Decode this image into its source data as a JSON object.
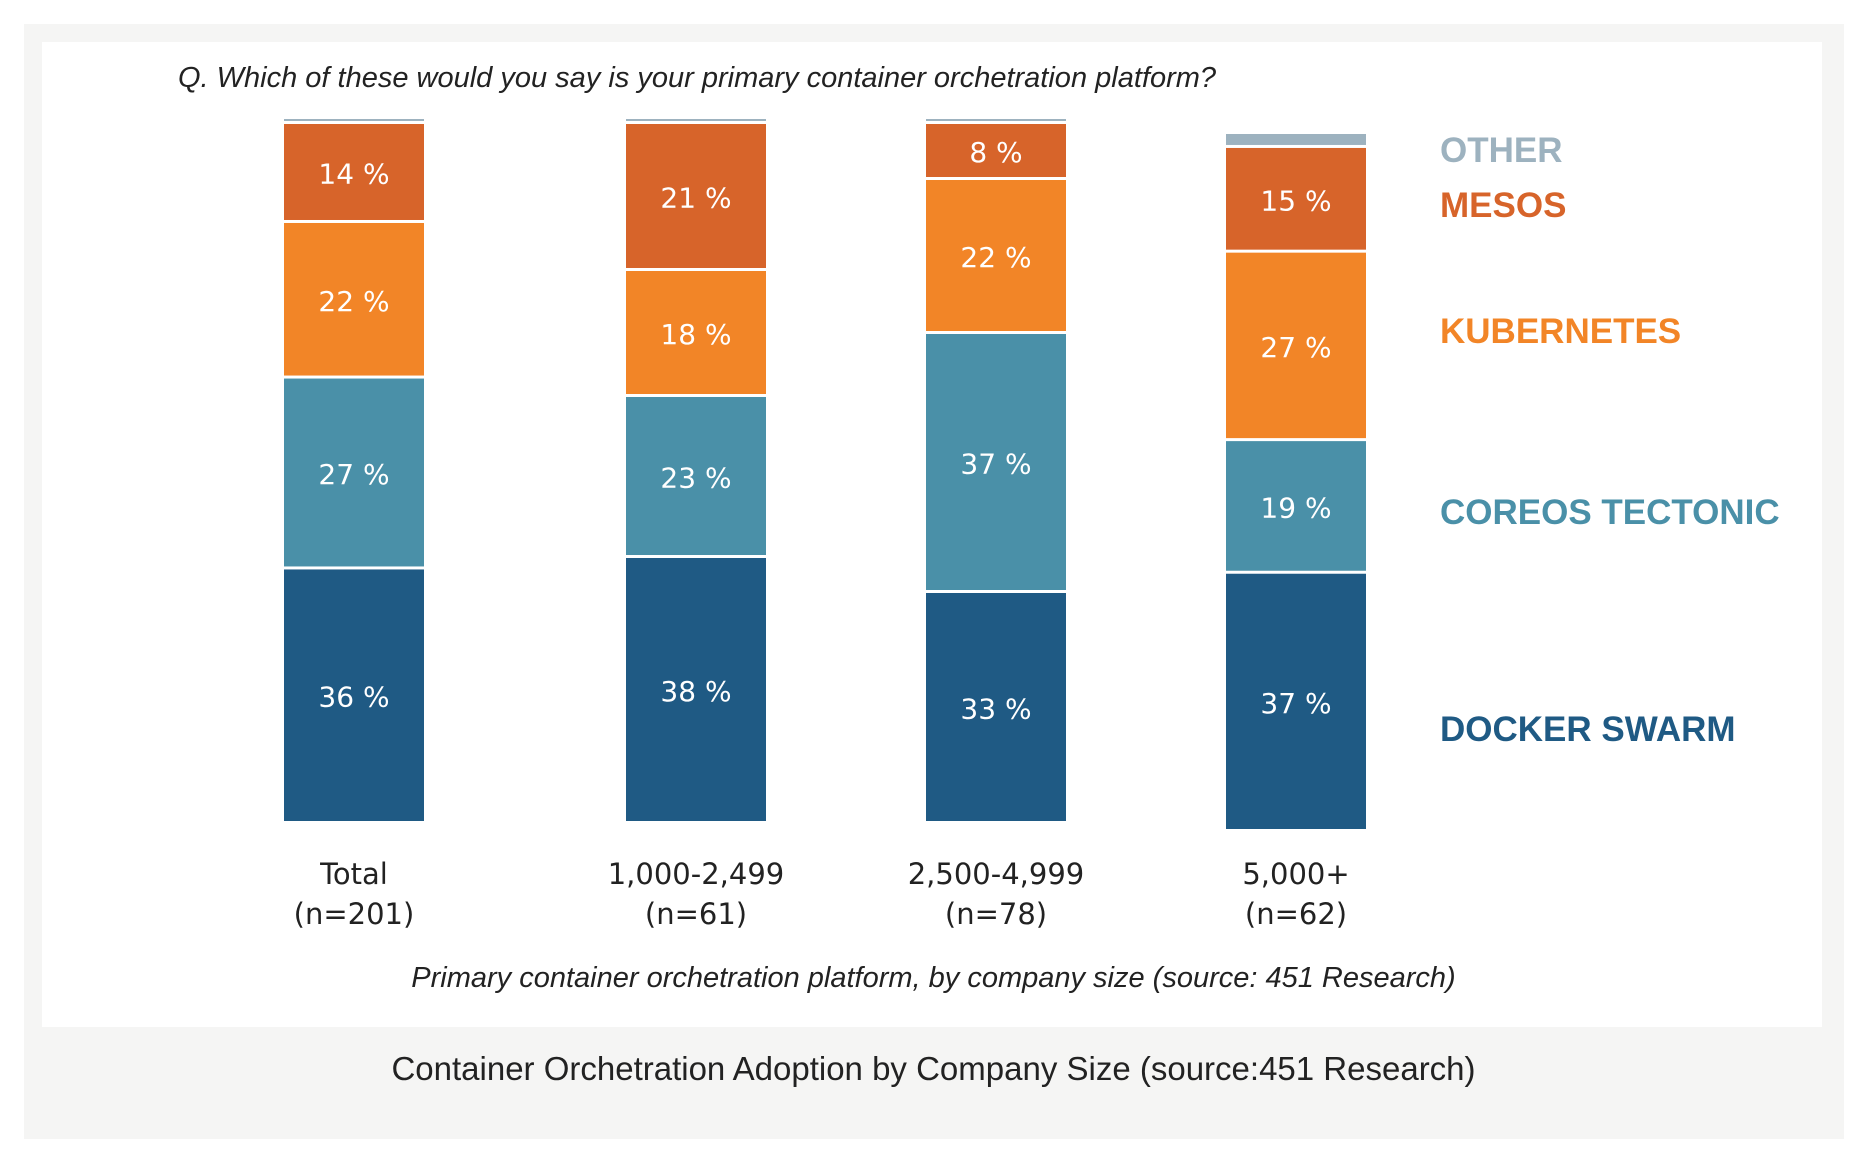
{
  "question": "Q. Which of these would you say is your primary container orchetration platform?",
  "subtitle": "Primary container orchetration platform, by company size (source: 451 Research)",
  "caption": "Container Orchetration Adoption by Company Size (source:451 Research)",
  "chart_data": {
    "type": "bar",
    "stacked": true,
    "categories": [
      [
        "Total",
        "(n=201)"
      ],
      [
        "1,000-2,499",
        "(n=61)"
      ],
      [
        "2,500-4,999",
        "(n=78)"
      ],
      [
        "5,000+",
        "(n=62)"
      ]
    ],
    "series": [
      {
        "name": "DOCKER SWARM",
        "color": "#1f5a84",
        "values": [
          36,
          38,
          33,
          37
        ]
      },
      {
        "name": "COREOS TECTONIC",
        "color": "#4a90a8",
        "values": [
          27,
          23,
          37,
          19
        ]
      },
      {
        "name": "KUBERNETES",
        "color": "#f28527",
        "values": [
          22,
          18,
          22,
          27
        ]
      },
      {
        "name": "MESOS",
        "color": "#d7642a",
        "values": [
          14,
          21,
          8,
          15
        ]
      },
      {
        "name": "OTHER",
        "color": "#9db2bf",
        "values": [
          0,
          0,
          0,
          2
        ]
      }
    ],
    "value_suffix": " %",
    "legend_position": "right",
    "grid": false
  }
}
